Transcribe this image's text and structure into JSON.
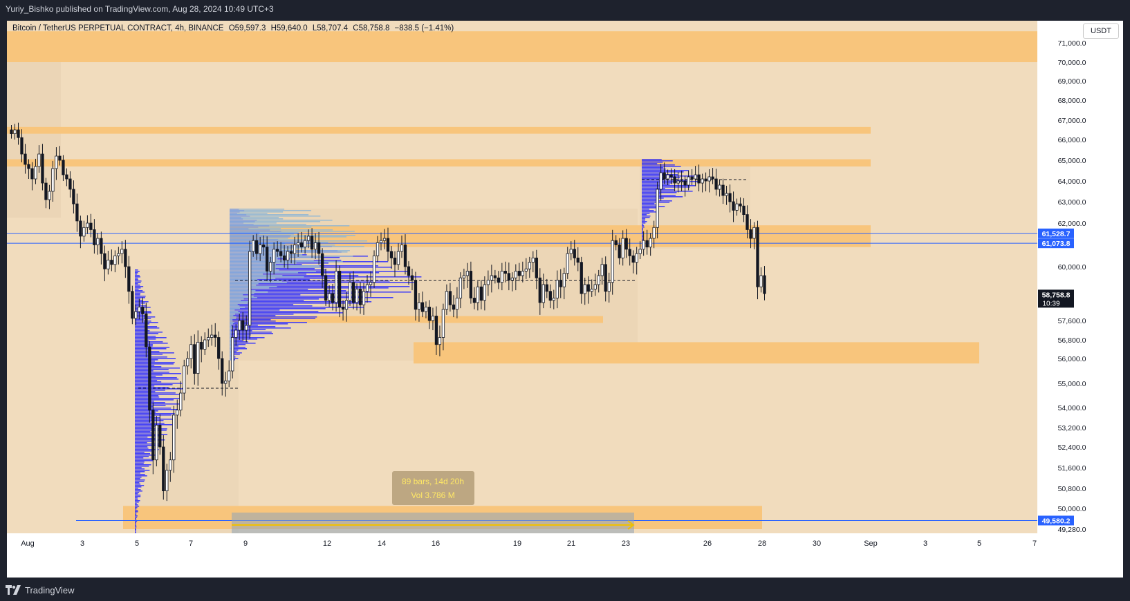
{
  "header": {
    "publisher_line": "Yuriy_Bishko published on TradingView.com, Aug 28, 2024 10:49 UTC+3"
  },
  "legend": {
    "symbol": "Bitcoin / TetherUS PERPETUAL CONTRACT, 4h, BINANCE",
    "open": "O59,597.3",
    "high": "H59,640.0",
    "low": "L58,707.4",
    "close": "C58,758.8",
    "change": "−838.5 (−1.41%)"
  },
  "currency_button": "USDT",
  "footer": {
    "brand": "TradingView"
  },
  "measure_box": {
    "line1": "89 bars, 14d 20h",
    "line2": "Vol 3.786 M"
  },
  "colors": {
    "background": "#f1dcbd",
    "zone": "#f8c57c",
    "up_candle": "#ffffff",
    "down_candle": "#131722",
    "profile_blue": "#2b2bff",
    "profile_light": "#8fb6d6",
    "line_blue": "#2962ff"
  },
  "chart_data": {
    "type": "candlestick",
    "title": "Bitcoin / TetherUS PERPETUAL CONTRACT, 4h, BINANCE",
    "x_ticks": [
      "Aug",
      "3",
      "5",
      "7",
      "9",
      "12",
      "14",
      "16",
      "19",
      "21",
      "23",
      "26",
      "28",
      "30",
      "Sep",
      "3",
      "5",
      "7"
    ],
    "y_ticks": [
      "71,000.0",
      "70,000.0",
      "69,000.0",
      "68,000.0",
      "67,000.0",
      "66,000.0",
      "65,000.0",
      "64,000.0",
      "63,000.0",
      "62,000.0",
      "60,000.0",
      "57,600.0",
      "56,800.0",
      "56,000.0",
      "55,000.0",
      "54,000.0",
      "53,200.0",
      "52,400.0",
      "51,600.0",
      "50,800.0",
      "50,000.0",
      "49,280.0"
    ],
    "price_tags": [
      {
        "label": "61,528.7",
        "value": 61528.7
      },
      {
        "label": "61,073.8",
        "value": 61073.8
      },
      {
        "label": "58,758.8",
        "sub": "10:39",
        "value": 58758.8
      },
      {
        "label": "49,580.2",
        "value": 49580.2
      }
    ],
    "candle_closes": [
      66300,
      66500,
      66100,
      65300,
      64800,
      64600,
      64100,
      64700,
      65300,
      63900,
      63100,
      63500,
      64600,
      65200,
      65000,
      64300,
      64100,
      63600,
      62900,
      62100,
      61400,
      61800,
      62000,
      61700,
      61000,
      61300,
      60600,
      59900,
      60300,
      60100,
      60500,
      60600,
      60800,
      60000,
      58900,
      57700,
      58000,
      58200,
      57900,
      56500,
      53900,
      51900,
      53300,
      52400,
      50700,
      51500,
      51900,
      53700,
      53900,
      54600,
      55700,
      56000,
      56600,
      55400,
      56700,
      56400,
      56800,
      56900,
      57000,
      56900,
      56000,
      55000,
      55100,
      55500,
      56900,
      57200,
      57600,
      57200,
      57400,
      60700,
      61200,
      60600,
      61000,
      60900,
      59800,
      60200,
      60800,
      60700,
      60500,
      60300,
      60700,
      60600,
      61000,
      61100,
      60900,
      61200,
      61400,
      60800,
      61100,
      60600,
      59600,
      58500,
      58800,
      58400,
      59800,
      58200,
      58100,
      58500,
      59300,
      58400,
      59000,
      58300,
      58900,
      59200,
      59300,
      60500,
      61100,
      61200,
      61300,
      60700,
      60400,
      60100,
      60700,
      61000,
      60000,
      59600,
      59400,
      58100,
      58400,
      58000,
      58200,
      57600,
      57800,
      56600,
      56900,
      58100,
      58900,
      58300,
      58100,
      58600,
      59500,
      59600,
      59800,
      58600,
      58400,
      59100,
      58500,
      59200,
      59400,
      59600,
      59500,
      59300,
      59800,
      59700,
      59400,
      59500,
      59800,
      59600,
      59800,
      59900,
      60200,
      60400,
      59500,
      58400,
      59200,
      58900,
      58500,
      58600,
      59400,
      59100,
      59700,
      60600,
      60800,
      60400,
      60200,
      58800,
      59200,
      58900,
      59000,
      59200,
      59600,
      60100,
      58900,
      59300,
      61200,
      61000,
      60400,
      61300,
      60800,
      60500,
      60200,
      60600,
      60800,
      61200,
      60900,
      61300,
      61800,
      63600,
      64400,
      64100,
      64300,
      64200,
      63900,
      64000,
      64000,
      63800,
      64200,
      64100,
      64300,
      63900,
      64100,
      64000,
      64200,
      64100,
      63600,
      63800,
      63300,
      63400,
      63000,
      62600,
      62900,
      62800,
      62400,
      61700,
      61300,
      61800,
      59100,
      59600,
      58800
    ],
    "zones": [
      {
        "from": 70000,
        "to": 71600,
        "x_from": "Jul 31",
        "x_to": "Sep 7"
      },
      {
        "from": 66300,
        "to": 66650,
        "x_from": "Jul 31",
        "x_to": "Aug 25"
      },
      {
        "from": 64700,
        "to": 65050,
        "x_from": "Jul 31",
        "x_to": "Aug 25"
      },
      {
        "from": 60900,
        "to": 61900,
        "x_from": "Aug 10",
        "x_to": "Aug 25"
      },
      {
        "from": 57500,
        "to": 57800,
        "x_from": "Aug 10",
        "x_to": "Aug 21"
      },
      {
        "from": 55800,
        "to": 56700,
        "x_from": "Aug 15",
        "x_to": "Sep 4"
      },
      {
        "from": 49280,
        "to": 50100,
        "x_from": "Aug 4",
        "x_to": "Aug 28"
      }
    ],
    "horizontal_lines": [
      61528.7,
      61073.8,
      49580.2
    ],
    "ylim": [
      49280,
      71800
    ],
    "grid": false
  }
}
